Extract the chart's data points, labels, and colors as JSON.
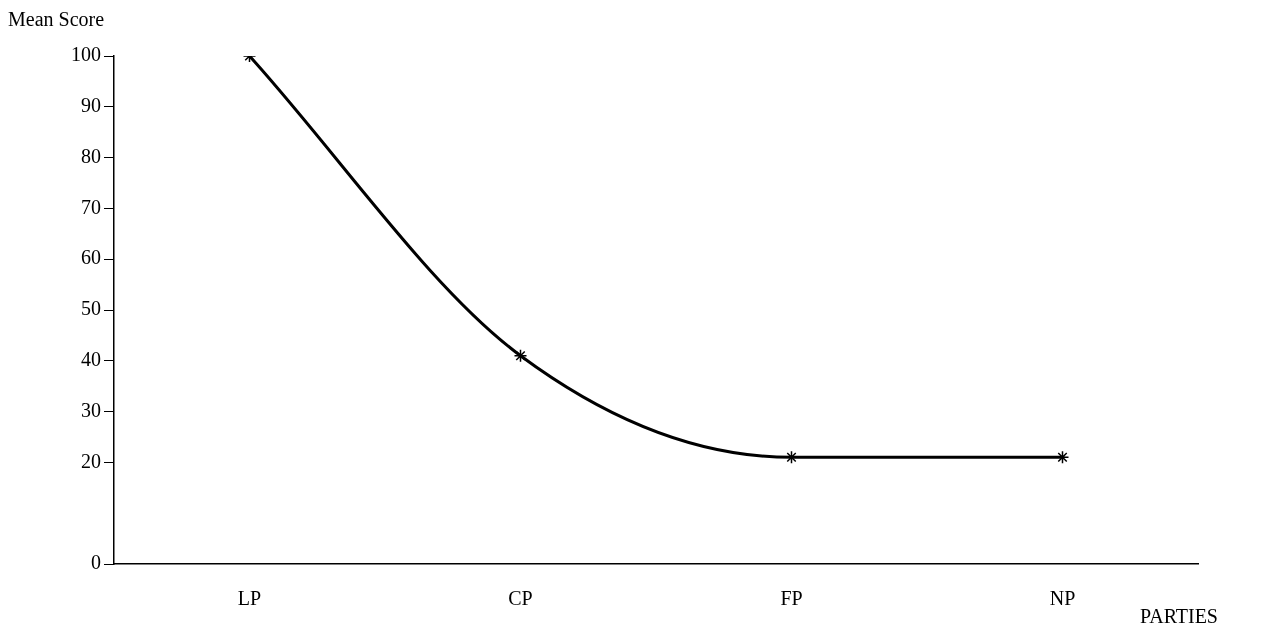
{
  "chart_data": {
    "type": "line",
    "xlabel": "PARTIES",
    "ylabel": "Mean Score",
    "categories": [
      "LP",
      "CP",
      "FP",
      "NP"
    ],
    "series": [
      {
        "color": "#000000",
        "values": [
          100,
          41,
          21,
          21
        ]
      }
    ],
    "ylim": [
      0,
      100
    ],
    "yticks": [
      0,
      20,
      30,
      40,
      50,
      60,
      70,
      80,
      90,
      100
    ],
    "marker": "cross",
    "grid": false
  }
}
